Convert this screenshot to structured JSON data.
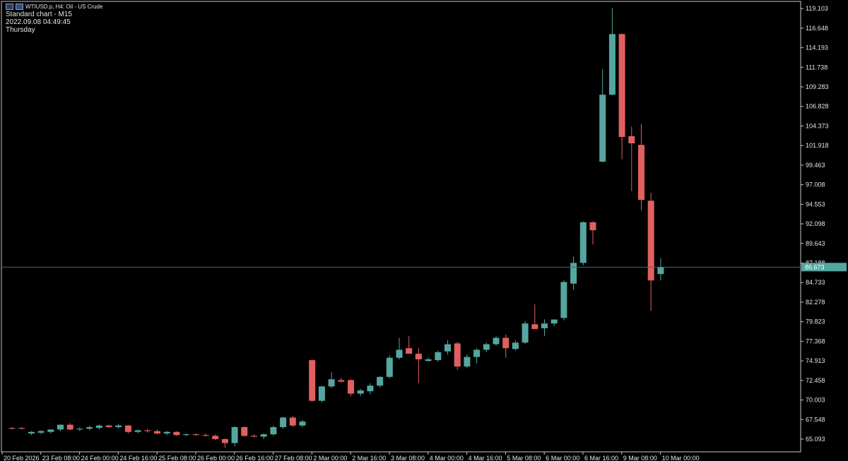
{
  "header": {
    "symbol_line": "WTIUSD.p, H4:  Oil - US Crude",
    "chart_name": "Standard chart - M15",
    "datetime": "2022.09.08 04:49:45",
    "weekday": "Thursday"
  },
  "icons": [
    "chart-window-icon",
    "chart-type-icon"
  ],
  "colors": {
    "background": "#000000",
    "bull": "#55a6a0",
    "bear": "#e06060",
    "text": "#e6e6e6",
    "axis": "#c8c8c8",
    "price_line": "#3f6b72",
    "current_price_bg": "#55a6a0"
  },
  "chart_data": {
    "type": "candlestick",
    "title": "",
    "ylim": [
      63.5,
      120.0
    ],
    "y_ticks": [
      "119.103",
      "116.648",
      "114.193",
      "111.738",
      "109.283",
      "106.828",
      "104.373",
      "101.918",
      "99.463",
      "97.008",
      "94.553",
      "92.098",
      "89.643",
      "87.188",
      "84.733",
      "82.278",
      "79.823",
      "77.368",
      "74.913",
      "72.458",
      "70.003",
      "67.548",
      "65.093"
    ],
    "x_labels": [
      {
        "label": "20 Feb 2026",
        "index": 0
      },
      {
        "label": "23 Feb 08:00",
        "index": 4
      },
      {
        "label": "24 Feb 00:00",
        "index": 8
      },
      {
        "label": "24 Feb 16:00",
        "index": 12
      },
      {
        "label": "25 Feb 08:00",
        "index": 16
      },
      {
        "label": "26 Feb 00:00",
        "index": 20
      },
      {
        "label": "26 Feb 16:00",
        "index": 24
      },
      {
        "label": "27 Feb 08:00",
        "index": 28
      },
      {
        "label": "2 Mar 00:00",
        "index": 32
      },
      {
        "label": "2 Mar 16:00",
        "index": 36
      },
      {
        "label": "3 Mar 08:00",
        "index": 40
      },
      {
        "label": "4 Mar 00:00",
        "index": 44
      },
      {
        "label": "4 Mar 16:00",
        "index": 48
      },
      {
        "label": "5 Mar 08:00",
        "index": 52
      },
      {
        "label": "6 Mar 00:00",
        "index": 56
      },
      {
        "label": "6 Mar 16:00",
        "index": 60
      },
      {
        "label": "9 Mar 08:00",
        "index": 64
      },
      {
        "label": "10 Mar 00:00",
        "index": 68
      }
    ],
    "current_price": "86.673",
    "candles": [
      {
        "o": 66.5,
        "h": 66.6,
        "l": 66.3,
        "c": 66.4
      },
      {
        "o": 66.5,
        "h": 66.6,
        "l": 66.3,
        "c": 66.4
      },
      {
        "o": 65.8,
        "h": 66.1,
        "l": 65.6,
        "c": 66.0
      },
      {
        "o": 65.9,
        "h": 66.2,
        "l": 65.7,
        "c": 66.1
      },
      {
        "o": 66.0,
        "h": 66.3,
        "l": 65.8,
        "c": 66.3
      },
      {
        "o": 66.3,
        "h": 66.9,
        "l": 66.1,
        "c": 66.9
      },
      {
        "o": 66.9,
        "h": 67.1,
        "l": 66.2,
        "c": 66.3
      },
      {
        "o": 66.3,
        "h": 66.6,
        "l": 66.1,
        "c": 66.4
      },
      {
        "o": 66.4,
        "h": 66.8,
        "l": 66.2,
        "c": 66.6
      },
      {
        "o": 66.5,
        "h": 66.9,
        "l": 66.3,
        "c": 66.8
      },
      {
        "o": 66.8,
        "h": 66.9,
        "l": 66.5,
        "c": 66.6
      },
      {
        "o": 66.6,
        "h": 67.0,
        "l": 66.4,
        "c": 66.8
      },
      {
        "o": 66.8,
        "h": 66.9,
        "l": 65.8,
        "c": 66.0
      },
      {
        "o": 66.0,
        "h": 66.3,
        "l": 65.8,
        "c": 66.2
      },
      {
        "o": 66.2,
        "h": 66.4,
        "l": 65.9,
        "c": 66.1
      },
      {
        "o": 66.1,
        "h": 66.3,
        "l": 65.7,
        "c": 65.8
      },
      {
        "o": 65.8,
        "h": 66.1,
        "l": 65.6,
        "c": 66.0
      },
      {
        "o": 66.0,
        "h": 66.1,
        "l": 65.5,
        "c": 65.6
      },
      {
        "o": 65.6,
        "h": 65.8,
        "l": 65.5,
        "c": 65.7
      },
      {
        "o": 65.7,
        "h": 65.8,
        "l": 65.5,
        "c": 65.6
      },
      {
        "o": 65.6,
        "h": 65.8,
        "l": 65.4,
        "c": 65.5
      },
      {
        "o": 65.5,
        "h": 65.7,
        "l": 65.0,
        "c": 65.1
      },
      {
        "o": 65.1,
        "h": 65.2,
        "l": 64.0,
        "c": 64.6
      },
      {
        "o": 64.6,
        "h": 66.7,
        "l": 64.2,
        "c": 66.6
      },
      {
        "o": 66.6,
        "h": 66.7,
        "l": 65.4,
        "c": 65.5
      },
      {
        "o": 65.5,
        "h": 65.7,
        "l": 65.3,
        "c": 65.4
      },
      {
        "o": 65.4,
        "h": 65.8,
        "l": 65.1,
        "c": 65.7
      },
      {
        "o": 65.7,
        "h": 66.8,
        "l": 65.5,
        "c": 66.6
      },
      {
        "o": 66.6,
        "h": 67.9,
        "l": 66.4,
        "c": 67.8
      },
      {
        "o": 67.8,
        "h": 68.0,
        "l": 66.6,
        "c": 66.8
      },
      {
        "o": 66.8,
        "h": 67.5,
        "l": 66.6,
        "c": 67.3
      },
      {
        "o": 75.0,
        "h": 75.1,
        "l": 69.8,
        "c": 69.9
      },
      {
        "o": 69.9,
        "h": 71.8,
        "l": 69.7,
        "c": 71.7
      },
      {
        "o": 71.7,
        "h": 73.5,
        "l": 71.5,
        "c": 72.6
      },
      {
        "o": 72.5,
        "h": 72.8,
        "l": 72.2,
        "c": 72.3
      },
      {
        "o": 72.5,
        "h": 72.6,
        "l": 70.5,
        "c": 70.8
      },
      {
        "o": 70.8,
        "h": 71.4,
        "l": 70.5,
        "c": 71.2
      },
      {
        "o": 71.1,
        "h": 72.1,
        "l": 70.7,
        "c": 71.8
      },
      {
        "o": 71.8,
        "h": 73.0,
        "l": 71.6,
        "c": 72.9
      },
      {
        "o": 72.9,
        "h": 75.6,
        "l": 72.7,
        "c": 75.3
      },
      {
        "o": 75.3,
        "h": 77.8,
        "l": 75.1,
        "c": 76.3
      },
      {
        "o": 76.5,
        "h": 78.0,
        "l": 75.8,
        "c": 75.8
      },
      {
        "o": 75.8,
        "h": 76.5,
        "l": 72.1,
        "c": 75.1
      },
      {
        "o": 74.9,
        "h": 75.3,
        "l": 74.8,
        "c": 75.1
      },
      {
        "o": 75.0,
        "h": 76.2,
        "l": 74.8,
        "c": 76.0
      },
      {
        "o": 76.1,
        "h": 77.5,
        "l": 75.7,
        "c": 77.0
      },
      {
        "o": 77.1,
        "h": 77.3,
        "l": 73.8,
        "c": 74.2
      },
      {
        "o": 74.2,
        "h": 75.7,
        "l": 74.0,
        "c": 75.4
      },
      {
        "o": 75.4,
        "h": 76.5,
        "l": 74.6,
        "c": 76.3
      },
      {
        "o": 76.3,
        "h": 77.2,
        "l": 76.0,
        "c": 77.0
      },
      {
        "o": 77.0,
        "h": 78.0,
        "l": 76.8,
        "c": 77.8
      },
      {
        "o": 77.8,
        "h": 78.2,
        "l": 75.3,
        "c": 76.5
      },
      {
        "o": 76.4,
        "h": 77.5,
        "l": 76.2,
        "c": 77.2
      },
      {
        "o": 77.2,
        "h": 79.9,
        "l": 77.0,
        "c": 79.6
      },
      {
        "o": 79.5,
        "h": 82.0,
        "l": 79.0,
        "c": 78.9
      },
      {
        "o": 79.0,
        "h": 80.1,
        "l": 78.0,
        "c": 79.6
      },
      {
        "o": 79.6,
        "h": 80.0,
        "l": 79.3,
        "c": 80.1
      },
      {
        "o": 80.3,
        "h": 85.0,
        "l": 80.0,
        "c": 84.8
      },
      {
        "o": 84.6,
        "h": 88.0,
        "l": 83.8,
        "c": 87.2
      },
      {
        "o": 87.2,
        "h": 92.4,
        "l": 86.9,
        "c": 92.3
      },
      {
        "o": 92.3,
        "h": 92.4,
        "l": 89.5,
        "c": 91.3
      },
      {
        "o": 99.9,
        "h": 111.5,
        "l": 99.8,
        "c": 108.3
      },
      {
        "o": 108.3,
        "h": 119.2,
        "l": 108.2,
        "c": 115.9
      },
      {
        "o": 115.9,
        "h": 116.0,
        "l": 100.2,
        "c": 103.0
      },
      {
        "o": 103.1,
        "h": 104.3,
        "l": 96.2,
        "c": 102.2
      },
      {
        "o": 102.0,
        "h": 104.6,
        "l": 93.8,
        "c": 95.1
      },
      {
        "o": 95.0,
        "h": 96.0,
        "l": 81.2,
        "c": 85.0
      },
      {
        "o": 85.8,
        "h": 87.8,
        "l": 85.0,
        "c": 86.7
      }
    ]
  }
}
